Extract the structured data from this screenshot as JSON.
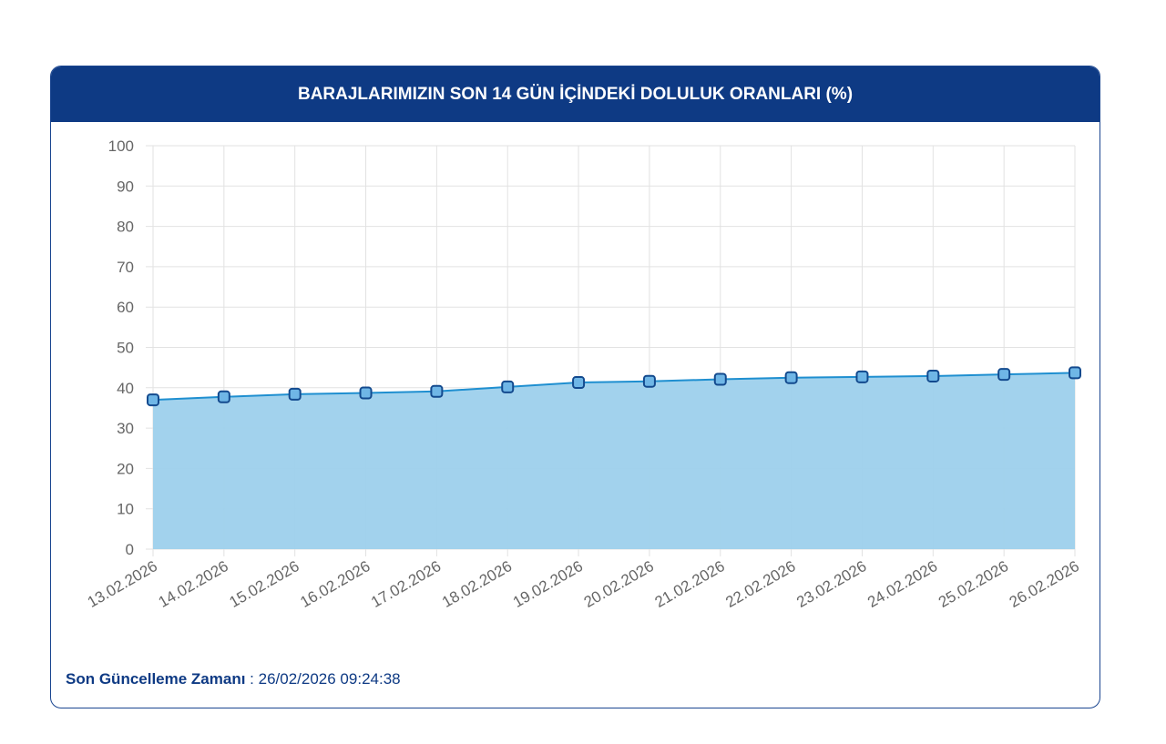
{
  "header": {
    "title": "BARAJLARIMIZIN SON 14 GÜN İÇİNDEKİ DOLULUK ORANLARI (%)"
  },
  "footer": {
    "label": "Son Güncelleme Zamanı",
    "separator": " : ",
    "value": "26/02/2026 09:24:38"
  },
  "chart_data": {
    "type": "area",
    "title": "BARAJLARIMIZIN SON 14 GÜN İÇİNDEKİ DOLULUK ORANLARI (%)",
    "categories": [
      "13.02.2026",
      "14.02.2026",
      "15.02.2026",
      "16.02.2026",
      "17.02.2026",
      "18.02.2026",
      "19.02.2026",
      "20.02.2026",
      "21.02.2026",
      "22.02.2026",
      "23.02.2026",
      "24.02.2026",
      "25.02.2026",
      "26.02.2026"
    ],
    "values": [
      37.0,
      37.75,
      38.4,
      38.7,
      39.1,
      40.2,
      41.3,
      41.6,
      42.1,
      42.5,
      42.7,
      42.9,
      43.3,
      43.7
    ],
    "ylim": [
      0,
      100
    ],
    "yticks": [
      0,
      10,
      20,
      30,
      40,
      50,
      60,
      70,
      80,
      90,
      100
    ],
    "grid": true,
    "colors": {
      "line": "#1f8fd0",
      "fill": "#9dd0ec",
      "marker_edge": "#134a8e",
      "marker_fill": "#6fb6e6"
    }
  }
}
